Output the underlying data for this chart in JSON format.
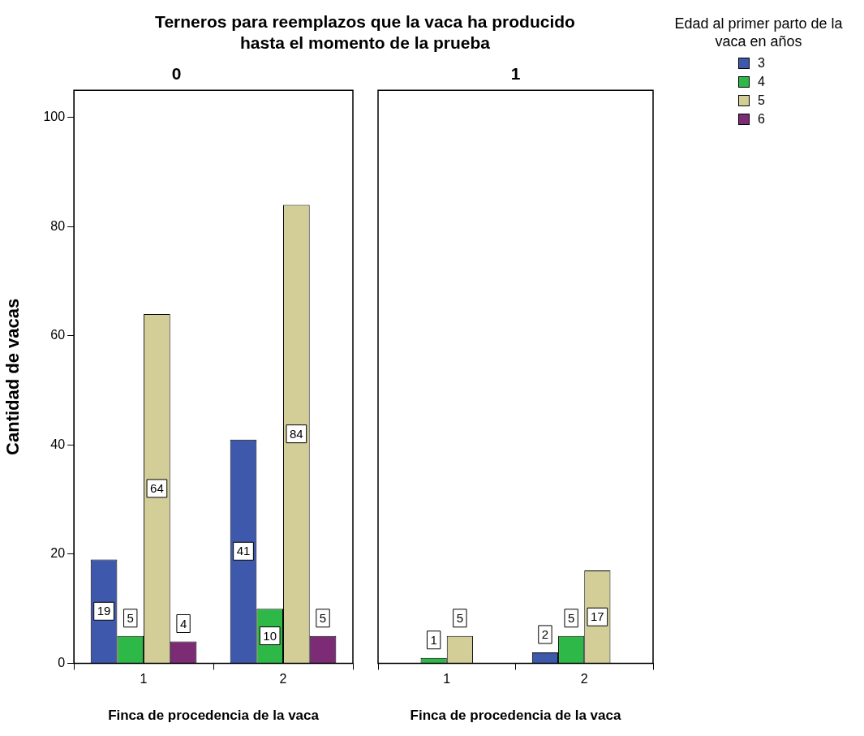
{
  "chart_data": [
    {
      "type": "bar",
      "title": "Terneros para reemplazos que la vaca ha producido hasta el momento de la prueba",
      "subtitle": "0",
      "xlabel": "Finca de procedencia de la vaca",
      "ylabel": "Cantidad de vacas",
      "categories": [
        "1",
        "2"
      ],
      "series": [
        {
          "name": "3",
          "color": "#3e58ac",
          "values": [
            19,
            41
          ]
        },
        {
          "name": "4",
          "color": "#2eb848",
          "values": [
            5,
            10
          ]
        },
        {
          "name": "5",
          "color": "#d3ce97",
          "values": [
            64,
            84
          ]
        },
        {
          "name": "6",
          "color": "#7b2c74",
          "values": [
            4,
            5
          ]
        }
      ],
      "ylim": [
        0,
        105
      ],
      "yticks": [
        0,
        20,
        40,
        60,
        80,
        100
      ],
      "grid": false,
      "data_labels": true,
      "legend": "right"
    },
    {
      "type": "bar",
      "subtitle": "1",
      "xlabel": "Finca de procedencia de la vaca",
      "categories": [
        "1",
        "2"
      ],
      "series": [
        {
          "name": "3",
          "color": "#3e58ac",
          "values": [
            null,
            2
          ]
        },
        {
          "name": "4",
          "color": "#2eb848",
          "values": [
            1,
            5
          ]
        },
        {
          "name": "5",
          "color": "#d3ce97",
          "values": [
            5,
            17
          ]
        },
        {
          "name": "6",
          "color": "#7b2c74",
          "values": [
            null,
            null
          ]
        }
      ],
      "ylim": [
        0,
        105
      ],
      "yticks": [
        0,
        20,
        40,
        60,
        80,
        100
      ],
      "grid": false,
      "data_labels": true,
      "tick_labels": "x",
      "legend": "right",
      "legend_title": "Edad al primer parto de la vaca en años"
    }
  ]
}
